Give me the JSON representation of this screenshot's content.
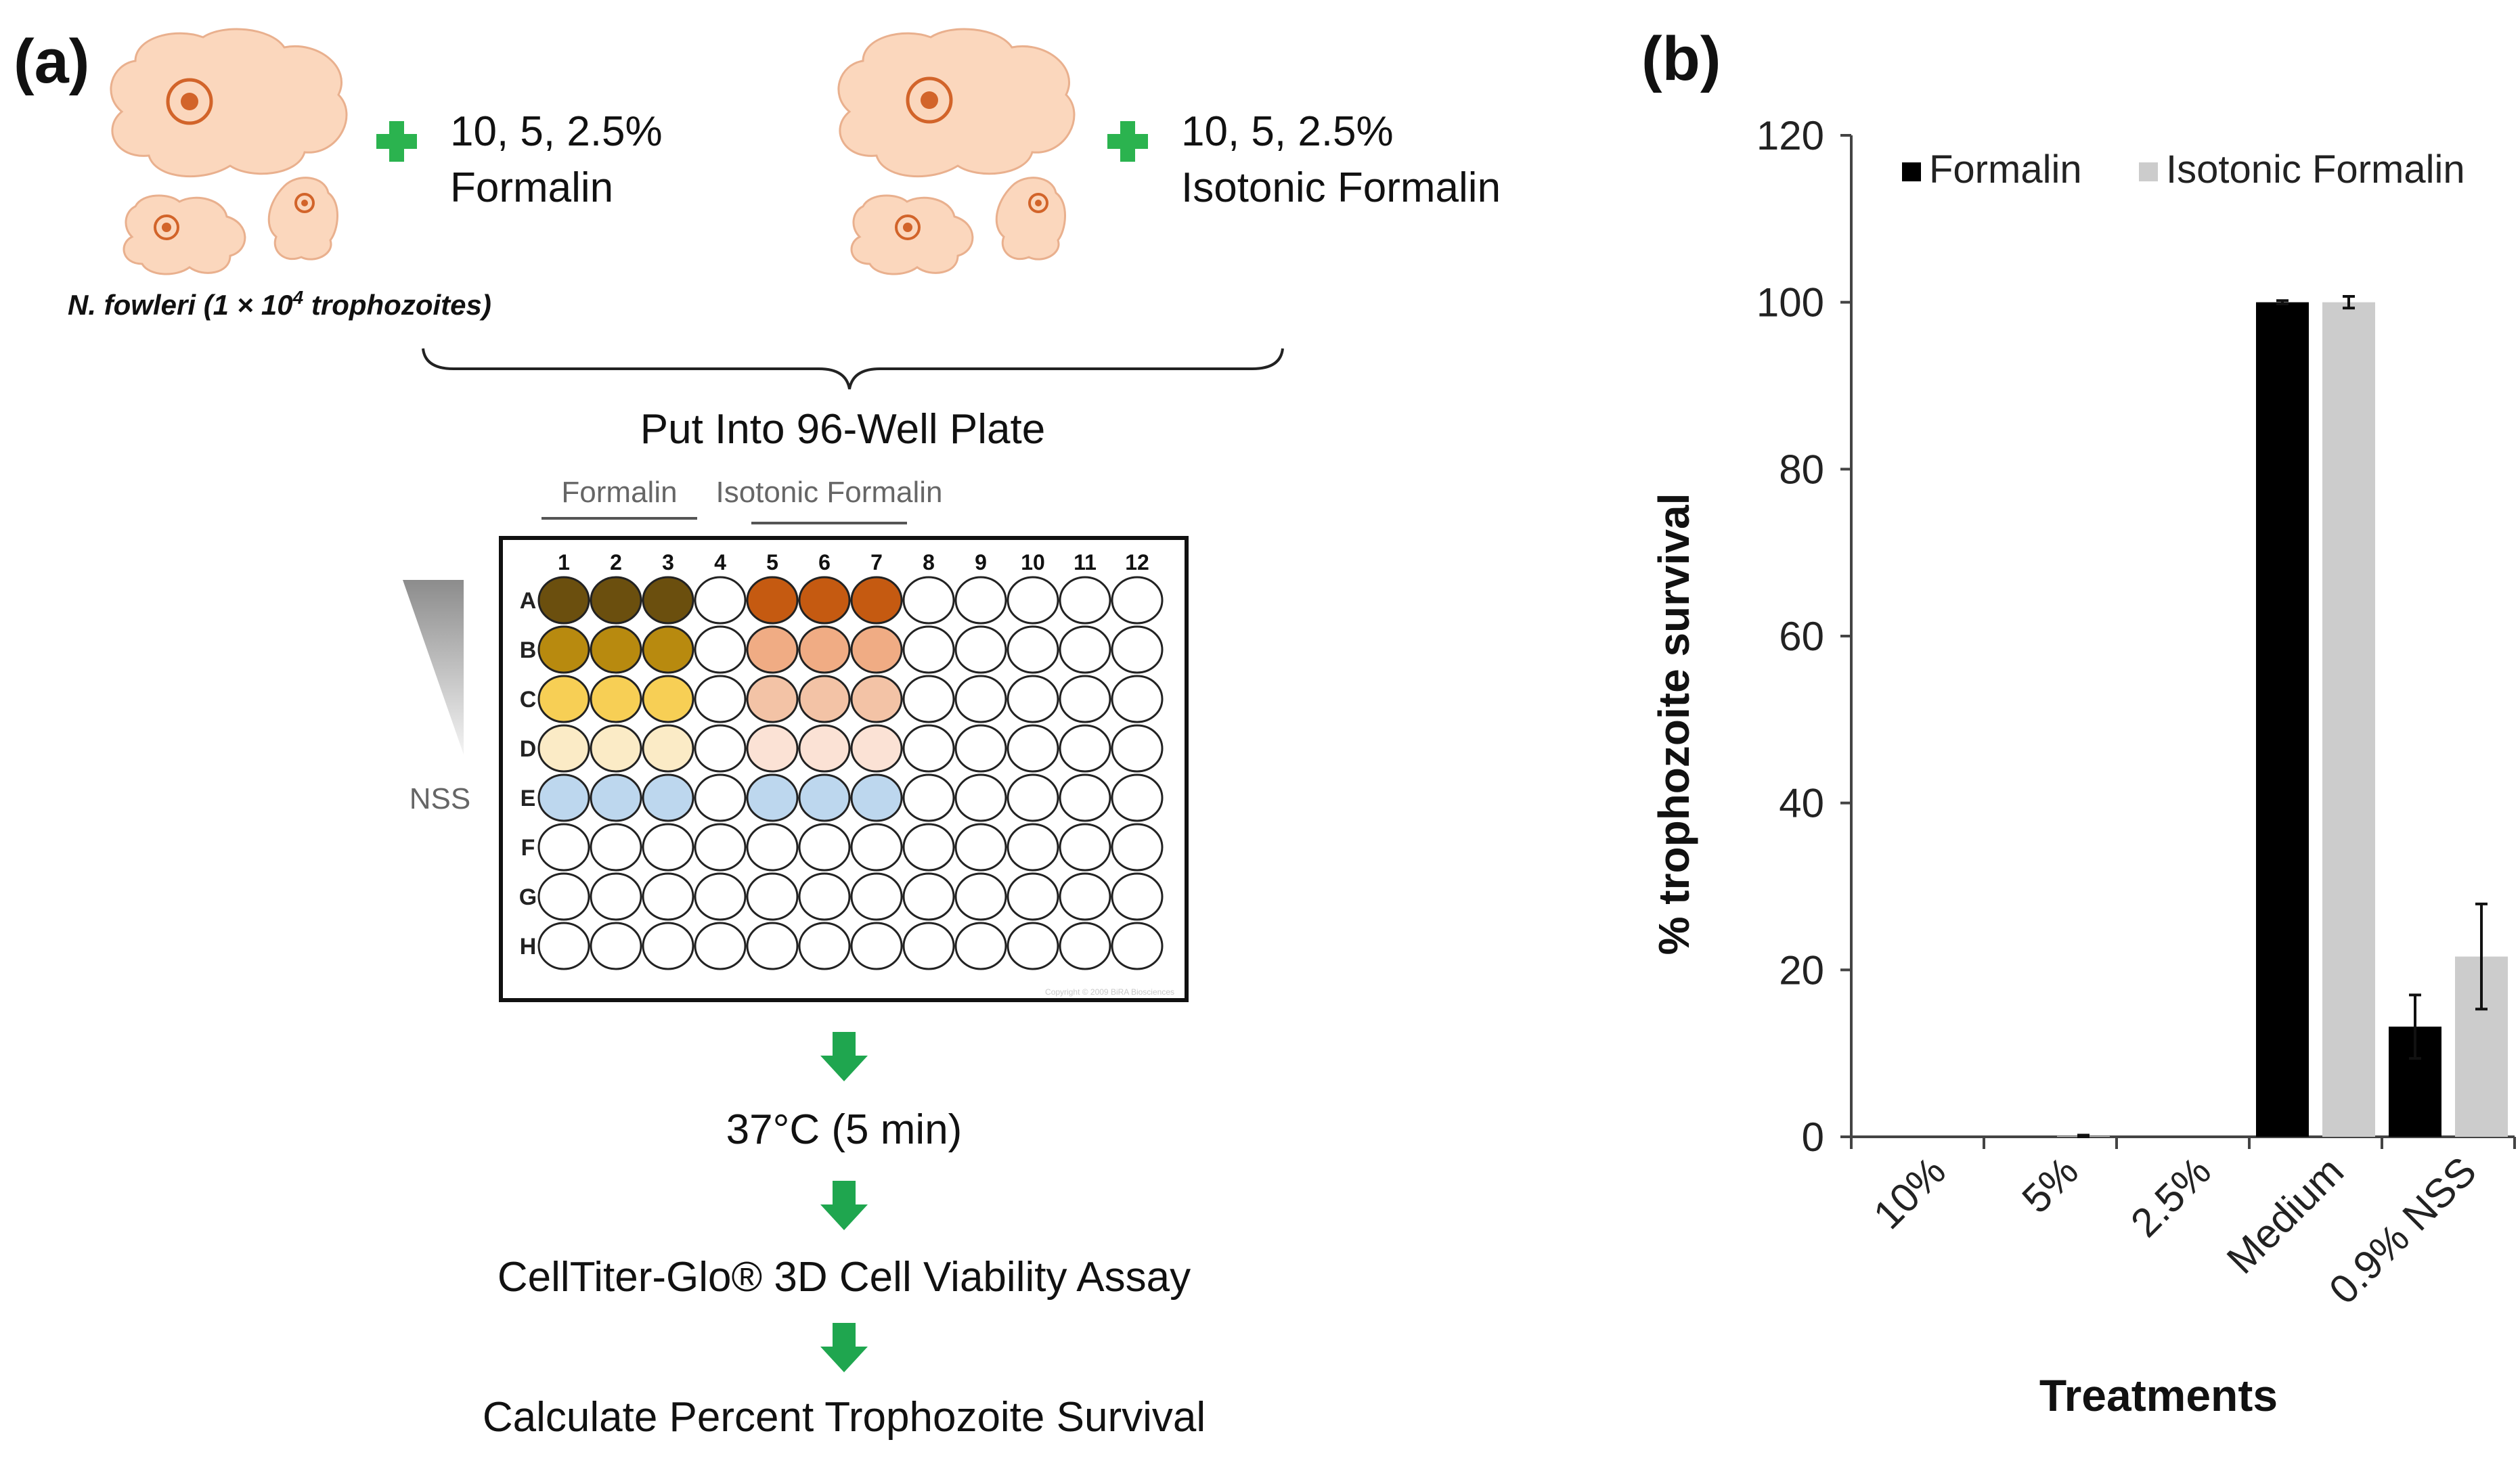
{
  "panel_a": {
    "label": "(a)",
    "organism_label": "N. fowleri (1 × 10",
    "organism_exp": "4",
    "organism_suffix": " trophozoites)",
    "treatment_left": {
      "line1": "10, 5, 2.5%",
      "line2": "Formalin"
    },
    "treatment_right": {
      "line1": "10, 5, 2.5%",
      "line2": "Isotonic Formalin"
    },
    "plate_step": "Put Into 96-Well Plate",
    "group_formalin": "Formalin",
    "group_isotonic": "Isotonic Formalin",
    "nss_label": "NSS",
    "plate": {
      "columns": [
        "1",
        "2",
        "3",
        "4",
        "5",
        "6",
        "7",
        "8",
        "9",
        "10",
        "11",
        "12"
      ],
      "rows": [
        "A",
        "B",
        "C",
        "D",
        "E",
        "F",
        "G",
        "H"
      ],
      "copyright": "Copyright © 2009 BiRA Biosciences",
      "colors": {
        "formalin": [
          "#6b4f0e",
          "#b88a0f",
          "#f7cf55",
          "#fbebc6"
        ],
        "isotonic": [
          "#c55a11",
          "#f0ac84",
          "#f3c3a6",
          "#fbe2d5"
        ],
        "nss": "#bdd7ee",
        "empty": "#ffffff"
      }
    },
    "steps": [
      "37°C (5 min)",
      "CellTiter-Glo® 3D Cell Viability Assay",
      "Calculate Percent Trophozoite Survival"
    ],
    "colors": {
      "arrow": "#1fa64f",
      "plus": "#2bb34f",
      "cell": "#fbd7bd",
      "nucleus": "#d2642a"
    }
  },
  "panel_b": {
    "label": "(b)"
  },
  "chart_data": {
    "type": "bar",
    "title": "",
    "xlabel": "Treatments",
    "ylabel": "% trophozoite survival",
    "ylim": [
      0,
      120
    ],
    "yticks": [
      0,
      20,
      40,
      60,
      80,
      100,
      120
    ],
    "grid": false,
    "legend_position": "top",
    "categories": [
      "10%",
      "5%",
      "2.5%",
      "Medium",
      "0.9% NSS"
    ],
    "series": [
      {
        "name": "Formalin",
        "color": "#000000",
        "values": [
          0,
          0,
          0,
          100,
          13.2
        ],
        "errors": [
          0,
          0,
          0,
          0.2,
          3.8
        ]
      },
      {
        "name": "Isotonic Formalin",
        "color": "#cccccc",
        "values": [
          0,
          0.1,
          0,
          100,
          21.6
        ],
        "errors": [
          0,
          0.1,
          0,
          0.7,
          6.3
        ]
      }
    ]
  }
}
